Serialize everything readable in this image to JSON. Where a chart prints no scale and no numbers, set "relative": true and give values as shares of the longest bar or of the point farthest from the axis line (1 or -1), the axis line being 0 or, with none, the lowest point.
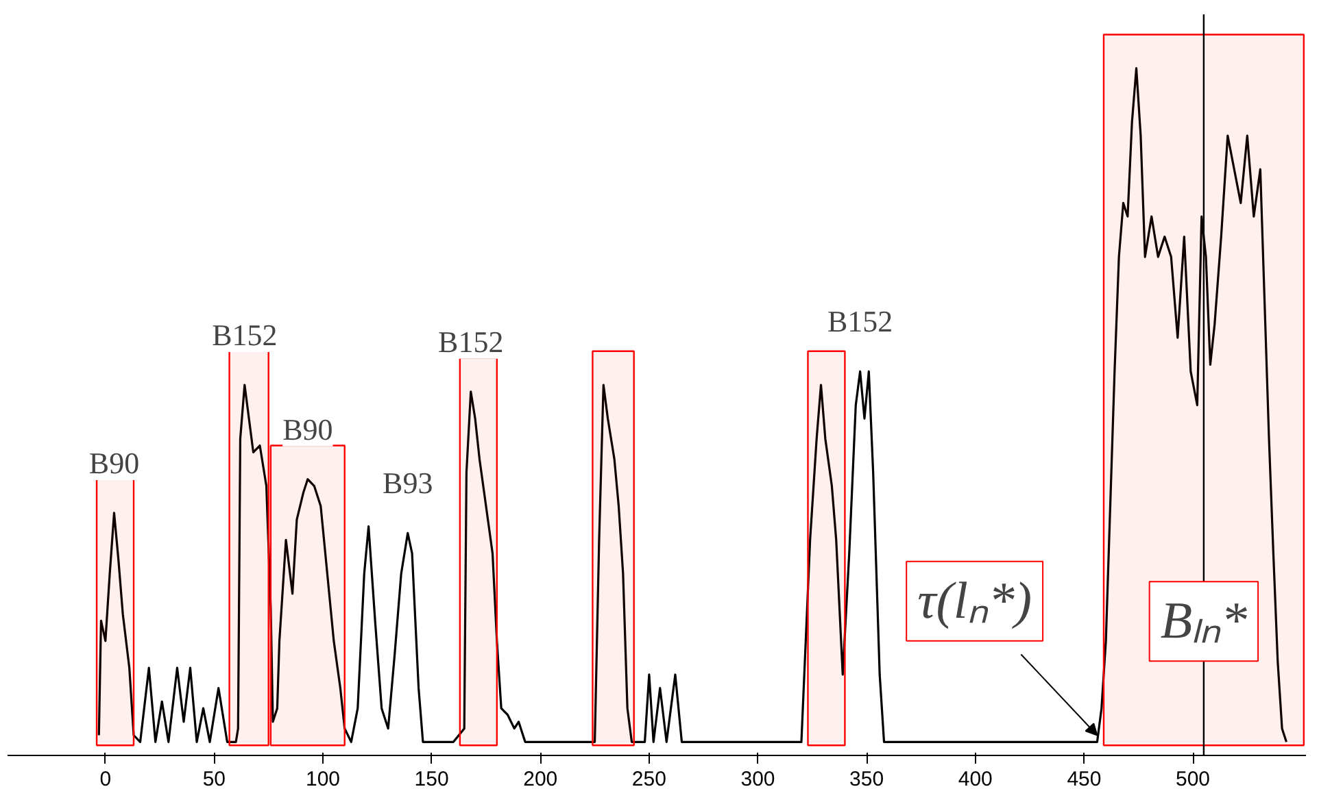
{
  "chart_data": {
    "type": "line",
    "relative": true,
    "xlim": [
      -45,
      552
    ],
    "xticks": [
      0,
      50,
      100,
      150,
      200,
      250,
      300,
      350,
      400,
      450,
      500
    ],
    "grid": false,
    "tick_labels": "x",
    "x": [
      -3,
      -2,
      0,
      2,
      4,
      6,
      8,
      11,
      13,
      16,
      20,
      23,
      26,
      29,
      33,
      36,
      39,
      42,
      45,
      48,
      52,
      56,
      60,
      61,
      62,
      64,
      66,
      68,
      71,
      74,
      76,
      77,
      79,
      80,
      83,
      86,
      88,
      91,
      93,
      96,
      99,
      102,
      105,
      108,
      110,
      113,
      116,
      119,
      121,
      124,
      127,
      130,
      133,
      136,
      139,
      141,
      144,
      146,
      160,
      165,
      166,
      168,
      170,
      172,
      175,
      178,
      180,
      182,
      185,
      188,
      190,
      193,
      225,
      227,
      229,
      231,
      234,
      236,
      238,
      240,
      242,
      248,
      250,
      252,
      255,
      258,
      262,
      265,
      320,
      324,
      327,
      329,
      331,
      334,
      336,
      339,
      342,
      345,
      347,
      349,
      351,
      353,
      356,
      358,
      456,
      458,
      460,
      462,
      464,
      466,
      468,
      470,
      472,
      474,
      476,
      478,
      481,
      484,
      487,
      490,
      493,
      496,
      499,
      502,
      504,
      506,
      508,
      510,
      513,
      516,
      519,
      522,
      525,
      528,
      531,
      533,
      535,
      537,
      539,
      541,
      543
    ],
    "series": [
      {
        "color": "#000000",
        "values": [
          0.01,
          0.18,
          0.15,
          0.25,
          0.34,
          0.27,
          0.19,
          0.11,
          0.01,
          0,
          0.11,
          0,
          0.06,
          0,
          0.11,
          0.03,
          0.11,
          0,
          0.05,
          0,
          0.08,
          0,
          0,
          0.02,
          0.45,
          0.53,
          0.48,
          0.43,
          0.44,
          0.38,
          0.2,
          0.03,
          0.05,
          0.15,
          0.3,
          0.22,
          0.33,
          0.37,
          0.39,
          0.38,
          0.35,
          0.25,
          0.15,
          0.08,
          0.02,
          0,
          0.05,
          0.25,
          0.32,
          0.18,
          0.05,
          0.02,
          0.13,
          0.25,
          0.31,
          0.28,
          0.08,
          0,
          0,
          0.02,
          0.4,
          0.52,
          0.48,
          0.42,
          0.35,
          0.28,
          0.15,
          0.05,
          0.04,
          0.02,
          0.03,
          0,
          0,
          0.3,
          0.53,
          0.48,
          0.42,
          0.35,
          0.25,
          0.05,
          0,
          0,
          0.1,
          0,
          0.08,
          0,
          0.1,
          0,
          0,
          0.3,
          0.45,
          0.53,
          0.45,
          0.38,
          0.3,
          0.1,
          0.28,
          0.5,
          0.55,
          0.48,
          0.55,
          0.4,
          0.1,
          0,
          0,
          0.05,
          0.15,
          0.35,
          0.55,
          0.72,
          0.8,
          0.78,
          0.92,
          1.0,
          0.9,
          0.72,
          0.78,
          0.72,
          0.75,
          0.72,
          0.6,
          0.75,
          0.55,
          0.5,
          0.78,
          0.72,
          0.56,
          0.62,
          0.75,
          0.9,
          0.85,
          0.8,
          0.9,
          0.78,
          0.85,
          0.65,
          0.45,
          0.28,
          0.12,
          0.02,
          0
        ]
      }
    ],
    "bands": [
      {
        "axis": "x",
        "from": -4,
        "to": 13,
        "color": "#ff0000"
      },
      {
        "axis": "x",
        "from": 57,
        "to": 75,
        "color": "#ff0000"
      },
      {
        "axis": "x",
        "from": 76,
        "to": 110,
        "color": "#ff0000"
      },
      {
        "axis": "x",
        "from": 163,
        "to": 180,
        "color": "#ff0000"
      },
      {
        "axis": "x",
        "from": 224,
        "to": 243,
        "color": "#ff0000"
      },
      {
        "axis": "x",
        "from": 323,
        "to": 340,
        "color": "#ff0000"
      },
      {
        "axis": "x",
        "from": 459,
        "to": 551,
        "color": "#ff0000"
      }
    ],
    "ref_lines": [
      {
        "axis": "x",
        "value": 505,
        "color": "#000000"
      }
    ],
    "annotations": [
      {
        "text": "B90",
        "x": 4,
        "y": 0.34
      },
      {
        "text": "B152",
        "x": 64,
        "y": 0.53
      },
      {
        "text": "B90",
        "x": 93,
        "y": 0.39
      },
      {
        "text": "B93",
        "x": 139,
        "y": 0.31
      },
      {
        "text": "B152",
        "x": 168,
        "y": 0.52
      },
      {
        "text": "B152",
        "x": 347,
        "y": 0.55
      },
      {
        "text": "τ(lₙ*)",
        "x": 456,
        "y": 0
      },
      "Bₗₙ*"
    ]
  }
}
